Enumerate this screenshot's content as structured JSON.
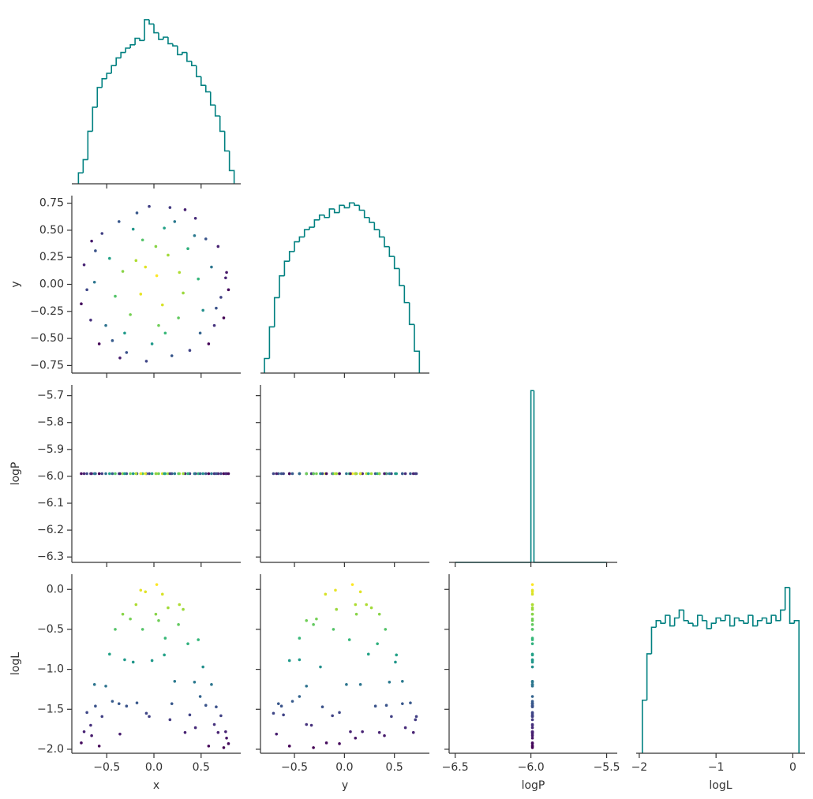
{
  "chart_data": {
    "type": "corner",
    "hist_color": "#008080",
    "cmap": "viridis",
    "color_by": 3,
    "variables": [
      {
        "name": "x",
        "xlim": [
          -0.87,
          0.92
        ],
        "xticks": [
          {
            "value": -0.5,
            "label": "−0.5"
          },
          {
            "value": 0,
            "label": "0.0"
          },
          0.5
        ],
        "bins": [
          -0.8,
          -0.75,
          -0.7,
          -0.65,
          -0.6,
          -0.55,
          -0.5,
          -0.45,
          -0.4,
          -0.35,
          -0.3,
          -0.25,
          -0.2,
          -0.15,
          -0.1,
          -0.05,
          0,
          0.05,
          0.1,
          0.15,
          0.2,
          0.25,
          0.3,
          0.35,
          0.4,
          0.45,
          0.5,
          0.55,
          0.6,
          0.65,
          0.7,
          0.75,
          0.8,
          0.85
        ],
        "counts": [
          10,
          22,
          48,
          70,
          88,
          96,
          101,
          108,
          115,
          120,
          124,
          127,
          133,
          131,
          150,
          146,
          138,
          132,
          134,
          128,
          126,
          118,
          120,
          112,
          108,
          98,
          90,
          84,
          72,
          62,
          48,
          30,
          12
        ],
        "count_lim": [
          0,
          155
        ],
        "samples": [
          -0.62,
          0.12,
          0.55,
          -0.18,
          0.71,
          -0.44,
          0.03,
          0.38,
          -0.71,
          0.22,
          -0.33,
          0.47,
          -0.08,
          0.64,
          -0.55,
          0.15,
          -0.25,
          0.77,
          -0.67,
          0.33,
          -0.12,
          0.58,
          -0.41,
          0.09,
          0.27,
          -0.74,
          0.44,
          -0.29,
          0.68,
          -0.05,
          -0.51,
          0.19,
          0.79,
          -0.37,
          0.05,
          -0.19,
          0.52,
          -0.63,
          0.36,
          -0.02,
          0.74,
          -0.47,
          0.11,
          -0.31,
          0.61,
          -0.77,
          0.26,
          -0.14,
          0.43,
          -0.58,
          0.02,
          0.49,
          -0.22,
          0.76,
          -0.66,
          0.31,
          -0.36,
          0.17,
          -0.09,
          0.66
        ]
      },
      {
        "name": "y",
        "xlim": [
          -0.84,
          0.85
        ],
        "xticks": [
          {
            "value": -0.5,
            "label": "−0.5"
          },
          {
            "value": 0,
            "label": "0.0"
          },
          0.5
        ],
        "ylim": [
          -0.82,
          0.82
        ],
        "yticks": [
          {
            "value": -0.75,
            "label": "−0.75"
          },
          {
            "value": -0.5,
            "label": "−0.50"
          },
          {
            "value": -0.25,
            "label": "−0.25"
          },
          {
            "value": 0,
            "label": "0.00"
          },
          0.25,
          {
            "value": 0.5,
            "label": "0.50"
          },
          0.75
        ],
        "bins": [
          -0.8,
          -0.75,
          -0.7,
          -0.65,
          -0.6,
          -0.55,
          -0.5,
          -0.45,
          -0.4,
          -0.35,
          -0.3,
          -0.25,
          -0.2,
          -0.15,
          -0.1,
          -0.05,
          0,
          0.05,
          0.1,
          0.15,
          0.2,
          0.25,
          0.3,
          0.35,
          0.4,
          0.45,
          0.5,
          0.55,
          0.6,
          0.65,
          0.7,
          0.75
        ],
        "counts": [
          12,
          38,
          62,
          80,
          92,
          100,
          108,
          112,
          118,
          120,
          126,
          130,
          128,
          135,
          132,
          138,
          136,
          140,
          138,
          134,
          128,
          124,
          118,
          112,
          104,
          96,
          86,
          72,
          58,
          40,
          18
        ],
        "count_lim": [
          0,
          146
        ],
        "samples": [
          0.31,
          -0.45,
          0.42,
          0.66,
          -0.12,
          -0.52,
          0.08,
          -0.61,
          -0.05,
          0.58,
          0.12,
          0.05,
          -0.71,
          -0.38,
          0.47,
          0.27,
          -0.28,
          0.11,
          -0.33,
          0.69,
          0.41,
          -0.55,
          -0.11,
          -0.19,
          0.11,
          0.18,
          0.61,
          -0.63,
          0.35,
          0.72,
          -0.38,
          -0.66,
          -0.05,
          0.58,
          -0.38,
          0.22,
          -0.24,
          0.02,
          0.33,
          -0.55,
          -0.31,
          0.24,
          0.52,
          -0.45,
          0.16,
          -0.18,
          -0.31,
          -0.09,
          0.45,
          -0.55,
          0.35,
          -0.45,
          0.51,
          0.06,
          0.4,
          -0.08,
          -0.68,
          0.71,
          0.16,
          -0.22
        ]
      },
      {
        "name": "logP",
        "xlim": [
          -6.54,
          -5.43
        ],
        "xticks": [
          {
            "value": -6.5,
            "label": "−6.5"
          },
          {
            "value": -6,
            "label": "−6.0"
          },
          {
            "value": -5.5,
            "label": "−5.5"
          }
        ],
        "ylim": [
          -6.32,
          -5.66
        ],
        "yticks": [
          {
            "value": -6.3,
            "label": "−6.3"
          },
          {
            "value": -6.2,
            "label": "−6.2"
          },
          {
            "value": -6.1,
            "label": "−6.1"
          },
          {
            "value": -6,
            "label": "−6.0"
          },
          {
            "value": -5.9,
            "label": "−5.9"
          },
          {
            "value": -5.8,
            "label": "−5.8"
          },
          {
            "value": -5.7,
            "label": "−5.7"
          }
        ],
        "bins": [
          -6.5,
          -6.0,
          -5.98,
          -5.5
        ],
        "counts": [
          0,
          6000,
          0
        ],
        "count_lim": [
          0,
          6200
        ],
        "samples": [
          -5.99,
          -5.99,
          -5.99,
          -5.99,
          -5.99,
          -5.99,
          -5.99,
          -5.99,
          -5.99,
          -5.99,
          -5.99,
          -5.99,
          -5.99,
          -5.99,
          -5.99,
          -5.99,
          -5.99,
          -5.99,
          -5.99,
          -5.99,
          -5.99,
          -5.99,
          -5.99,
          -5.99,
          -5.99,
          -5.99,
          -5.99,
          -5.99,
          -5.99,
          -5.99,
          -5.99,
          -5.99,
          -5.99,
          -5.99,
          -5.99,
          -5.99,
          -5.99,
          -5.99,
          -5.99,
          -5.99,
          -5.99,
          -5.99,
          -5.99,
          -5.99,
          -5.99,
          -5.99,
          -5.99,
          -5.99,
          -5.99,
          -5.99,
          -5.99,
          -5.99,
          -5.99,
          -5.99,
          -5.99,
          -5.99,
          -5.99,
          -5.99,
          -5.99,
          -5.99
        ]
      },
      {
        "name": "logL",
        "xlim": [
          -2.04,
          0.16
        ],
        "xticks": [
          {
            "value": -2,
            "label": "−2"
          },
          {
            "value": -1,
            "label": "−1"
          },
          0
        ],
        "ylim": [
          -2.05,
          0.19
        ],
        "yticks": [
          {
            "value": -2,
            "label": "−2.0"
          },
          {
            "value": -1.5,
            "label": "−1.5"
          },
          {
            "value": -1,
            "label": "−1.0"
          },
          {
            "value": -0.5,
            "label": "−0.5"
          },
          {
            "value": 0,
            "label": "0.0"
          }
        ],
        "bins": [
          -1.96,
          -1.9,
          -1.84,
          -1.78,
          -1.72,
          -1.66,
          -1.6,
          -1.54,
          -1.48,
          -1.42,
          -1.36,
          -1.3,
          -1.24,
          -1.18,
          -1.12,
          -1.06,
          -1,
          -0.94,
          -0.88,
          -0.82,
          -0.76,
          -0.7,
          -0.64,
          -0.58,
          -0.52,
          -0.46,
          -0.4,
          -0.34,
          -0.28,
          -0.22,
          -0.16,
          -0.1,
          -0.04,
          0.02,
          0.08
        ],
        "counts": [
          40,
          75,
          95,
          100,
          98,
          104,
          96,
          102,
          108,
          100,
          98,
          96,
          104,
          100,
          94,
          98,
          102,
          100,
          104,
          96,
          102,
          100,
          98,
          104,
          96,
          100,
          102,
          98,
          104,
          100,
          108,
          125,
          98,
          100
        ],
        "count_lim": [
          0,
          135
        ],
        "samples": [
          -1.46,
          -0.61,
          -1.45,
          -1.42,
          -1.58,
          -1.4,
          0.06,
          -1.57,
          -1.54,
          -1.15,
          -0.31,
          -0.63,
          -1.55,
          -1.69,
          -1.59,
          -0.23,
          -0.37,
          -1.86,
          -1.7,
          -1.79,
          -0.5,
          -1.96,
          -0.5,
          -0.06,
          -0.19,
          -1.78,
          -1.73,
          -1.46,
          -1.79,
          -1.59,
          -1.21,
          -1.43,
          -1.93,
          -1.43,
          -0.39,
          -0.19,
          -0.97,
          -1.19,
          -0.68,
          -0.89,
          -1.98,
          -0.81,
          -0.82,
          -0.88,
          -1.19,
          -1.92,
          -0.44,
          -0.01,
          -1.16,
          -1.96,
          -0.31,
          -1.34,
          -0.91,
          -1.78,
          -1.83,
          -0.25,
          -1.81,
          -1.63,
          -0.03,
          -1.47
        ]
      }
    ]
  }
}
